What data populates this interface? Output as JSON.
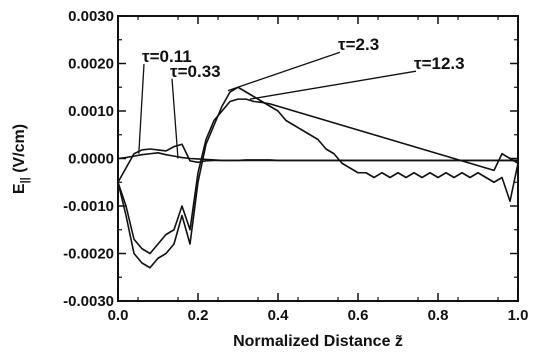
{
  "chart_data": {
    "type": "line",
    "title": "",
    "xlabel": "Normalized Distance z̃",
    "ylabel_main": "E",
    "ylabel_sub": "||",
    "ylabel_unit": " (V/cm)",
    "xlim": [
      0.0,
      1.0
    ],
    "ylim": [
      -0.003,
      0.003
    ],
    "x_ticks": [
      "0.0",
      "0.2",
      "0.4",
      "0.6",
      "0.8",
      "1.0"
    ],
    "y_ticks": [
      "0.0030",
      "0.0020",
      "0.0010",
      "0.0000",
      "-0.0010",
      "-0.0020",
      "-0.0030"
    ],
    "grid": false,
    "legend": "none",
    "line_color": "#111111",
    "series": [
      {
        "x": [
          0.0,
          0.02,
          0.04,
          0.06,
          0.08,
          0.1,
          0.12,
          0.14,
          0.16,
          0.18,
          0.2,
          0.22,
          0.24,
          0.26,
          0.28,
          0.3,
          0.32,
          0.34,
          0.36,
          0.38,
          0.4,
          1.0
        ],
        "y": [
          0.0,
          2e-05,
          5e-05,
          8e-05,
          0.0001,
          0.00012,
          8e-05,
          5e-05,
          2e-05,
          0.0,
          -1e-05,
          -2e-05,
          -3e-05,
          -4e-05,
          -4e-05,
          -4e-05,
          -3e-05,
          -3e-05,
          -3e-05,
          -3e-05,
          -4e-05,
          -4e-05
        ]
      },
      {
        "x": [
          0.0,
          0.02,
          0.04,
          0.06,
          0.08,
          0.1,
          0.12,
          0.14,
          0.16,
          0.18,
          0.2,
          0.22,
          0.24,
          0.26,
          0.28,
          0.3,
          0.34,
          0.38,
          0.4,
          1.0
        ],
        "y": [
          -0.0005,
          -0.0002,
          0.0001,
          0.00018,
          0.0002,
          0.00018,
          0.00016,
          0.00025,
          0.0003,
          -5e-05,
          -8e-05,
          -5e-05,
          -4e-05,
          -4e-05,
          -4e-05,
          -4e-05,
          -4e-05,
          -4e-05,
          -4e-05,
          -4e-05
        ]
      },
      {
        "x": [
          0.0,
          0.02,
          0.04,
          0.06,
          0.08,
          0.1,
          0.12,
          0.14,
          0.16,
          0.18,
          0.2,
          0.22,
          0.24,
          0.26,
          0.28,
          0.3,
          0.32,
          0.34,
          0.36,
          0.38,
          0.4,
          0.42,
          0.44,
          0.46,
          0.48,
          0.5,
          0.52,
          0.54,
          0.56,
          0.58,
          0.6,
          0.62,
          0.64,
          0.66,
          0.68,
          0.7,
          0.72,
          0.74,
          0.76,
          0.78,
          0.8,
          0.82,
          0.84,
          0.86,
          0.88,
          0.9,
          0.92,
          0.94,
          0.96,
          0.98,
          1.0
        ],
        "y": [
          -0.0005,
          -0.0012,
          -0.002,
          -0.0022,
          -0.0023,
          -0.0021,
          -0.002,
          -0.0018,
          -0.0012,
          -0.0018,
          -0.0005,
          0.0003,
          0.0007,
          0.0011,
          0.0014,
          0.0015,
          0.0014,
          0.0013,
          0.0012,
          0.0011,
          0.001,
          0.0008,
          0.0007,
          0.0006,
          0.0005,
          0.0004,
          0.0002,
          0.0001,
          -0.0001,
          -0.0002,
          -0.0003,
          -0.0003,
          -0.0004,
          -0.0003,
          -0.0004,
          -0.0003,
          -0.0004,
          -0.0003,
          -0.0004,
          -0.0003,
          -0.0004,
          -0.0003,
          -0.0004,
          -0.0003,
          -0.0004,
          -0.0003,
          -0.0004,
          -0.0005,
          -0.0004,
          -0.0009,
          -0.0001
        ]
      },
      {
        "x": [
          0.0,
          0.02,
          0.04,
          0.06,
          0.08,
          0.1,
          0.12,
          0.14,
          0.16,
          0.18,
          0.2,
          0.22,
          0.24,
          0.26,
          0.28,
          0.3,
          0.32,
          0.34,
          0.36,
          0.38,
          0.4,
          0.42,
          0.44,
          0.46,
          0.48,
          0.5,
          0.52,
          0.54,
          0.56,
          0.58,
          0.6,
          0.62,
          0.64,
          0.66,
          0.68,
          0.7,
          0.72,
          0.74,
          0.76,
          0.78,
          0.8,
          0.82,
          0.84,
          0.86,
          0.88,
          0.9,
          0.92,
          0.94,
          0.96,
          0.98,
          1.0
        ],
        "y": [
          -0.0005,
          -0.001,
          -0.0017,
          -0.0019,
          -0.002,
          -0.0018,
          -0.0016,
          -0.0015,
          -0.001,
          -0.0015,
          -0.0003,
          0.0004,
          0.0008,
          0.001,
          0.0012,
          0.00125,
          0.00125,
          0.0012,
          0.00118,
          0.00115,
          0.0011,
          0.00105,
          0.001,
          0.00095,
          0.0009,
          0.00085,
          0.0008,
          0.00075,
          0.0007,
          0.00065,
          0.0006,
          0.00055,
          0.0005,
          0.00045,
          0.0004,
          0.00035,
          0.0003,
          0.00025,
          0.0002,
          0.00015,
          0.0001,
          5e-05,
          0.0,
          -5e-05,
          -0.0001,
          -0.00015,
          -0.0002,
          -0.00025,
          0.0001,
          0.0,
          -0.0001
        ]
      }
    ],
    "annotations": [
      {
        "label": "τ=0.11",
        "text_x": 0.06,
        "text_y": 0.00203,
        "arrow_x": 0.052,
        "arrow_y": 0.0001
      },
      {
        "label": "τ=0.33",
        "text_x": 0.13,
        "text_y": 0.00172,
        "arrow_x": 0.15,
        "arrow_y": 0.0
      },
      {
        "label": "τ=2.3",
        "text_x": 0.55,
        "text_y": 0.00228,
        "arrow_x": 0.275,
        "arrow_y": 0.00143
      },
      {
        "label": "τ=12.3",
        "text_x": 0.74,
        "text_y": 0.00188,
        "arrow_x": 0.33,
        "arrow_y": 0.00125
      }
    ]
  }
}
